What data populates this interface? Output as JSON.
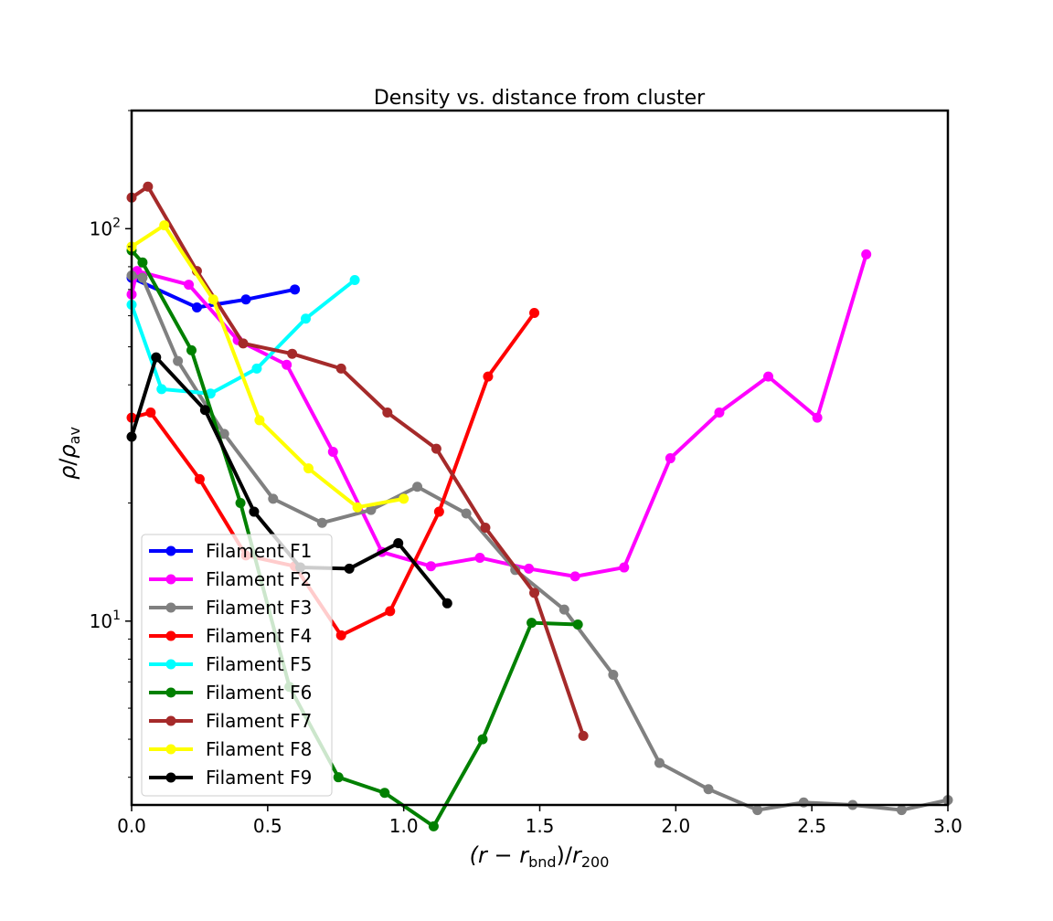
{
  "chart_data": {
    "type": "line",
    "title": "Density vs. distance from cluster",
    "xlabel": "(r − r_bnd)/r_200",
    "ylabel": "ρ/ρ_av",
    "xlim": [
      0.0,
      3.0
    ],
    "ylim": [
      3.4,
      200
    ],
    "yscale": "log",
    "x_ticks": [
      "0.0",
      "0.5",
      "1.0",
      "1.5",
      "2.0",
      "2.5",
      "3.0"
    ],
    "y_tick_labels": [
      "10",
      "10"
    ],
    "y_tick_exponents": [
      "1",
      "2"
    ],
    "legend_position": "lower-left",
    "grid": false,
    "series": [
      {
        "name": "Filament F1",
        "color": "#0000ff",
        "x": [
          0.0,
          0.24,
          0.42,
          0.6
        ],
        "y": [
          75,
          63,
          66,
          70
        ]
      },
      {
        "name": "Filament F2",
        "color": "#ff00ff",
        "x": [
          0.0,
          0.02,
          0.21,
          0.39,
          0.57,
          0.74,
          0.92,
          1.1,
          1.28,
          1.46,
          1.63,
          1.81,
          1.98,
          2.16,
          2.34,
          2.52,
          2.7
        ],
        "y": [
          68,
          78,
          72,
          52,
          45,
          27,
          15,
          13.8,
          14.5,
          13.6,
          13,
          13.7,
          26,
          34,
          42,
          33,
          86
        ]
      },
      {
        "name": "Filament F3",
        "color": "#808080",
        "x": [
          0.0,
          0.04,
          0.17,
          0.34,
          0.52,
          0.7,
          0.88,
          1.05,
          1.23,
          1.41,
          1.59,
          1.77,
          1.94,
          2.12,
          2.3,
          2.47,
          2.65,
          2.83,
          3.0
        ],
        "y": [
          76,
          75,
          46,
          30,
          20.5,
          17.8,
          19.2,
          22,
          18.8,
          13.5,
          10.7,
          7.3,
          4.35,
          3.73,
          3.3,
          3.45,
          3.4,
          3.3,
          3.5
        ]
      },
      {
        "name": "Filament F4",
        "color": "#ff0000",
        "x": [
          0.0,
          0.07,
          0.25,
          0.42,
          0.6,
          0.77,
          0.95,
          1.13,
          1.31,
          1.48
        ],
        "y": [
          33,
          34,
          23,
          14.7,
          13.8,
          9.2,
          10.6,
          19,
          42,
          61
        ]
      },
      {
        "name": "Filament F5",
        "color": "#00ffff",
        "x": [
          0.0,
          0.11,
          0.29,
          0.46,
          0.64,
          0.82
        ],
        "y": [
          64,
          39,
          38,
          44,
          59,
          74
        ]
      },
      {
        "name": "Filament F6",
        "color": "#008000",
        "x": [
          0.0,
          0.04,
          0.22,
          0.4,
          0.58,
          0.76,
          0.93,
          1.11,
          1.29,
          1.47,
          1.64
        ],
        "y": [
          88,
          82,
          49,
          20,
          6.8,
          4.0,
          3.65,
          3.0,
          5.0,
          9.9,
          9.8
        ]
      },
      {
        "name": "Filament F7",
        "color": "#a52a2a",
        "x": [
          0.0,
          0.06,
          0.24,
          0.41,
          0.59,
          0.77,
          0.94,
          1.12,
          1.3,
          1.48,
          1.66
        ],
        "y": [
          120,
          128,
          78,
          51,
          48,
          44,
          34,
          27.5,
          17.3,
          11.8,
          5.1
        ]
      },
      {
        "name": "Filament F8",
        "color": "#ffff00",
        "x": [
          0.0,
          0.12,
          0.3,
          0.47,
          0.65,
          0.83,
          1.0
        ],
        "y": [
          90,
          102,
          66,
          32.5,
          24.5,
          19.5,
          20.5
        ]
      },
      {
        "name": "Filament F9",
        "color": "#000000",
        "x": [
          0.0,
          0.09,
          0.27,
          0.45,
          0.62,
          0.8,
          0.98,
          1.16
        ],
        "y": [
          29.5,
          47,
          34.5,
          19,
          13.7,
          13.6,
          15.8,
          11.1
        ]
      }
    ]
  }
}
